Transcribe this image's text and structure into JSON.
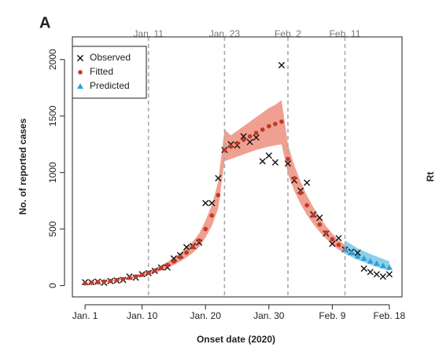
{
  "chart_data": {
    "type": "scatter",
    "panel_label": "A",
    "side_label": "Rt",
    "x_label": "Onset date (2020)",
    "y_label": "No. of reported cases",
    "xlim": [
      -1,
      51
    ],
    "ylim": [
      -100,
      2200
    ],
    "xticks": [
      {
        "value": 1,
        "label": "Jan. 1"
      },
      {
        "value": 10,
        "label": "Jan. 10"
      },
      {
        "value": 20,
        "label": "Jan. 20"
      },
      {
        "value": 30,
        "label": "Jan. 30"
      },
      {
        "value": 40,
        "label": "Feb. 9"
      },
      {
        "value": 49,
        "label": "Feb. 18"
      }
    ],
    "yticks": [
      0,
      500,
      1000,
      1500,
      2000
    ],
    "ref_lines": [
      {
        "value": 11,
        "label": "Jan. 11"
      },
      {
        "value": 23,
        "label": "Jan. 23"
      },
      {
        "value": 33,
        "label": "Feb. 2"
      },
      {
        "value": 42,
        "label": "Feb. 11"
      }
    ],
    "ref_line_color": "#aaaaaa",
    "legend_position": "top-left",
    "series": [
      {
        "name": "Observed",
        "marker": "x",
        "color": "#111111",
        "x": [
          1,
          2,
          3,
          4,
          5,
          6,
          7,
          8,
          9,
          10,
          11,
          12,
          13,
          14,
          15,
          16,
          17,
          18,
          19,
          20,
          21,
          22,
          23,
          24,
          25,
          26,
          27,
          28,
          29,
          30,
          31,
          32,
          33,
          34,
          35,
          36,
          37,
          38,
          39,
          40,
          41,
          42,
          43,
          44,
          45,
          46,
          47,
          48,
          49
        ],
        "values": [
          30,
          30,
          35,
          25,
          40,
          45,
          50,
          80,
          70,
          100,
          110,
          130,
          160,
          160,
          240,
          270,
          340,
          350,
          380,
          730,
          730,
          950,
          1200,
          1250,
          1240,
          1320,
          1270,
          1310,
          1100,
          1150,
          1090,
          1950,
          1080,
          930,
          840,
          910,
          630,
          600,
          460,
          370,
          420,
          320,
          300,
          290,
          150,
          120,
          100,
          80,
          100
        ]
      },
      {
        "name": "Fitted",
        "marker": "circle",
        "color": "#c0392b",
        "band_color": "#f0a090",
        "x": [
          1,
          2,
          3,
          4,
          5,
          6,
          7,
          8,
          9,
          10,
          11,
          12,
          13,
          14,
          15,
          16,
          17,
          18,
          19,
          20,
          21,
          22,
          23,
          24,
          25,
          26,
          27,
          28,
          29,
          30,
          31,
          32,
          33,
          34,
          35,
          36,
          37,
          38,
          39,
          40,
          41,
          42
        ],
        "values": [
          20,
          25,
          30,
          35,
          40,
          48,
          57,
          68,
          80,
          95,
          112,
          132,
          155,
          182,
          213,
          250,
          292,
          340,
          400,
          500,
          620,
          800,
          1200,
          1230,
          1260,
          1290,
          1320,
          1350,
          1380,
          1410,
          1430,
          1450,
          1120,
          950,
          820,
          710,
          620,
          540,
          470,
          410,
          360,
          320
        ],
        "lower": [
          17,
          21,
          26,
          30,
          34,
          41,
          48,
          58,
          68,
          81,
          95,
          112,
          132,
          155,
          181,
          213,
          248,
          289,
          340,
          425,
          527,
          680,
          1100,
          1120,
          1140,
          1160,
          1180,
          1200,
          1215,
          1230,
          1240,
          1250,
          990,
          840,
          720,
          625,
          545,
          475,
          415,
          360,
          317,
          282
        ],
        "upper": [
          23,
          29,
          35,
          40,
          46,
          55,
          66,
          78,
          92,
          109,
          129,
          152,
          178,
          209,
          245,
          288,
          336,
          391,
          460,
          575,
          713,
          920,
          1380,
          1330,
          1370,
          1410,
          1450,
          1490,
          1530,
          1570,
          1600,
          1640,
          1250,
          1065,
          920,
          795,
          695,
          605,
          525,
          460,
          403,
          358
        ]
      },
      {
        "name": "Predicted",
        "marker": "triangle",
        "color": "#2e9fd6",
        "band_color": "#8ccfea",
        "x": [
          42,
          43,
          44,
          45,
          46,
          47,
          48,
          49
        ],
        "values": [
          320,
          290,
          260,
          240,
          215,
          195,
          175,
          160
        ],
        "lower": [
          280,
          255,
          228,
          208,
          185,
          165,
          148,
          133
        ],
        "upper": [
          400,
          365,
          330,
          305,
          280,
          258,
          235,
          215
        ]
      }
    ]
  }
}
